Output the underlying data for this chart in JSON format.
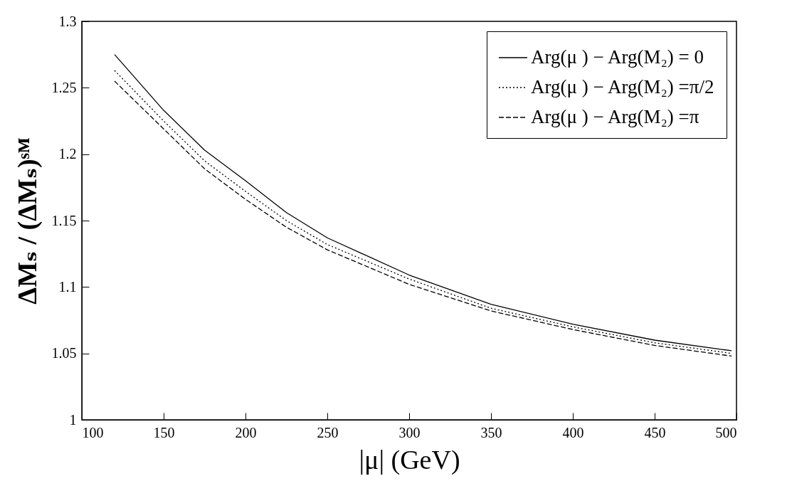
{
  "chart_data": {
    "type": "line",
    "xlabel": "|μ| (GeV)",
    "ylabel": "ΔMₛ / (ΔMₛ)ˢᴹ",
    "x": [
      120,
      150,
      175,
      200,
      225,
      250,
      300,
      350,
      400,
      450,
      497
    ],
    "xlim": [
      100,
      500
    ],
    "xticks": [
      100,
      150,
      200,
      250,
      300,
      350,
      400,
      450,
      500
    ],
    "ylim": [
      1,
      1.3
    ],
    "yticks": [
      1,
      1.05,
      1.1,
      1.15,
      1.2,
      1.25,
      1.3
    ],
    "grid": false,
    "legend": "top right",
    "marker": "none",
    "series": [
      {
        "name": "Arg(μ ) − Arg(M₂) = 0",
        "color": "#000000",
        "line_style": "solid",
        "values": [
          1.275,
          1.233,
          1.203,
          1.18,
          1.156,
          1.137,
          1.109,
          1.087,
          1.072,
          1.06,
          1.052
        ]
      },
      {
        "name": "Arg(μ ) − Arg(M₂) =π/2",
        "color": "#000000",
        "line_style": "dotted",
        "values": [
          1.263,
          1.225,
          1.195,
          1.172,
          1.15,
          1.132,
          1.106,
          1.084,
          1.07,
          1.058,
          1.05
        ]
      },
      {
        "name": "Arg(μ ) − Arg(M₂) =π",
        "color": "#000000",
        "line_style": "dashed",
        "values": [
          1.255,
          1.219,
          1.189,
          1.166,
          1.145,
          1.128,
          1.102,
          1.082,
          1.068,
          1.056,
          1.048
        ]
      }
    ]
  }
}
